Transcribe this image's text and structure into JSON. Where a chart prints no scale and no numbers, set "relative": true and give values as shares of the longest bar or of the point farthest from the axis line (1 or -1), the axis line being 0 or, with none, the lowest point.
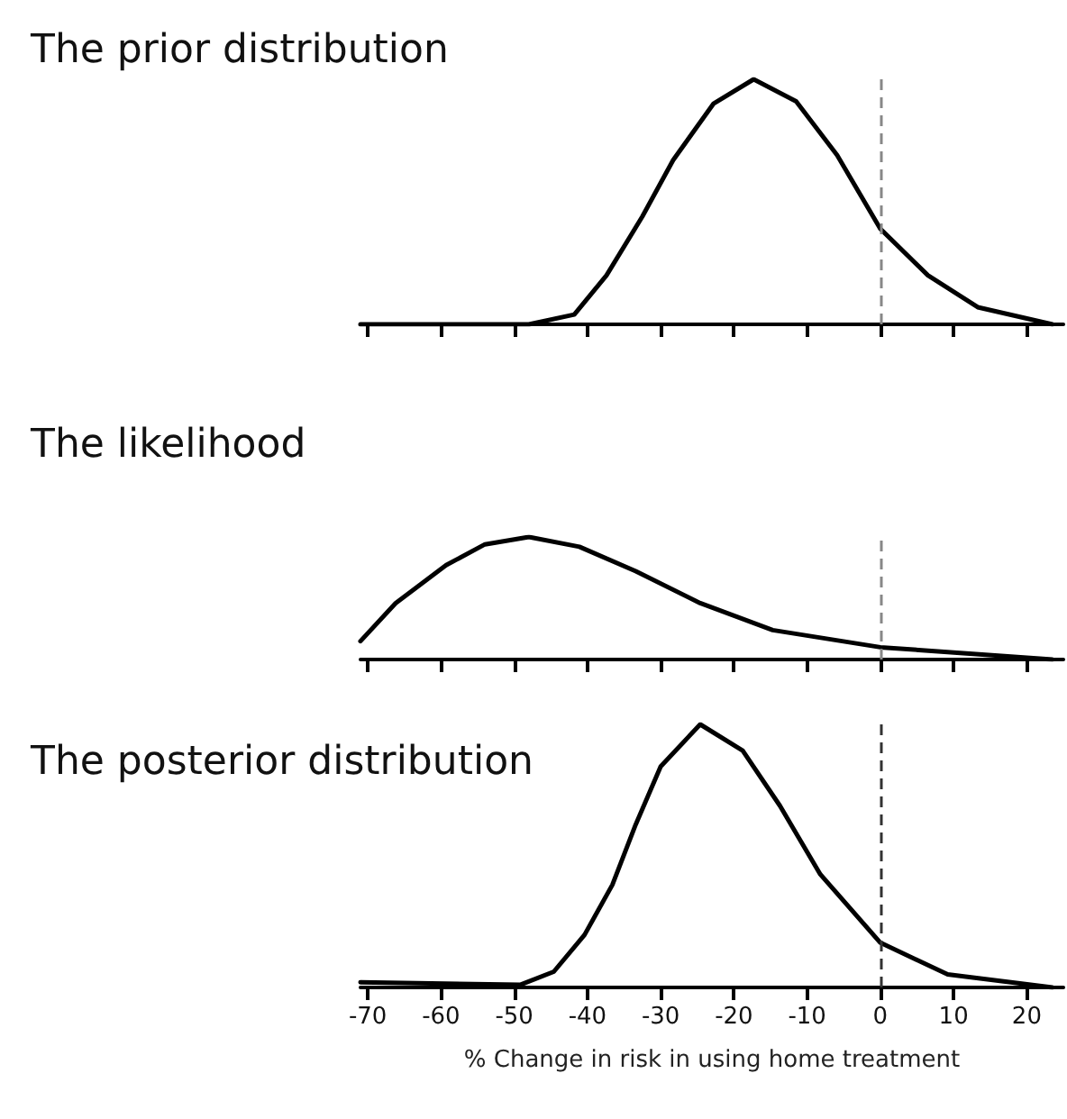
{
  "chart_data": [
    {
      "type": "line",
      "title": "The prior distribution",
      "relative": true,
      "xlim": [
        -71,
        25
      ],
      "xticks": [
        -70,
        -60,
        -50,
        -40,
        -30,
        -20,
        -10,
        0,
        10,
        20
      ],
      "tick_labels": false,
      "marker": "none",
      "line_style": "solid",
      "series": [
        {
          "color": "#000000",
          "x": [
            -71,
            -48.0,
            -41.8,
            -37.4,
            -32.5,
            -28.3,
            -22.8,
            -17.3,
            -11.5,
            -5.9,
            0,
            6.5,
            13.3,
            23.5
          ],
          "values": [
            0,
            0,
            0.04,
            0.2,
            0.44,
            0.67,
            0.9,
            1,
            0.91,
            0.69,
            0.39,
            0.2,
            0.07,
            0
          ]
        }
      ],
      "ref_lines": [
        {
          "axis": "x",
          "value": 0,
          "color": "#888888",
          "line_style": "dashed"
        }
      ]
    },
    {
      "type": "line",
      "title": "The likelihood",
      "relative": true,
      "xlim": [
        -71,
        25
      ],
      "xticks": [
        -70,
        -60,
        -50,
        -40,
        -30,
        -20,
        -10,
        0,
        10,
        20
      ],
      "tick_labels": false,
      "marker": "none",
      "line_style": "solid",
      "series": [
        {
          "color": "#000000",
          "x": [
            -71,
            -66.2,
            -59.3,
            -54.0,
            -48.0,
            -41.1,
            -33.4,
            -24.6,
            -14.7,
            0,
            23.5
          ],
          "values": [
            0.15,
            0.46,
            0.77,
            0.94,
            1,
            0.92,
            0.72,
            0.46,
            0.24,
            0.1,
            0
          ]
        }
      ],
      "ref_lines": [
        {
          "axis": "x",
          "value": 0,
          "color": "#888888",
          "line_style": "dashed"
        }
      ]
    },
    {
      "type": "line",
      "title": "The posterior distribution",
      "xlabel": "% Change in risk in using home treatment",
      "relative": true,
      "xlim": [
        -71,
        25
      ],
      "xticks": [
        -70,
        -60,
        -50,
        -40,
        -30,
        -20,
        -10,
        0,
        10,
        20
      ],
      "tick_labels": "x",
      "marker": "none",
      "line_style": "solid",
      "series": [
        {
          "color": "#000000",
          "x": [
            -71,
            -49.2,
            -44.6,
            -40.4,
            -36.6,
            -33.4,
            -30.0,
            -24.6,
            -18.8,
            -13.7,
            -8.2,
            0,
            9.2,
            23.5
          ],
          "values": [
            0.02,
            0.01,
            0.06,
            0.2,
            0.39,
            0.62,
            0.84,
            1,
            0.9,
            0.69,
            0.43,
            0.17,
            0.05,
            0
          ]
        }
      ],
      "ref_lines": [
        {
          "axis": "x",
          "value": 0,
          "color": "#333333",
          "line_style": "dashed"
        }
      ]
    }
  ]
}
